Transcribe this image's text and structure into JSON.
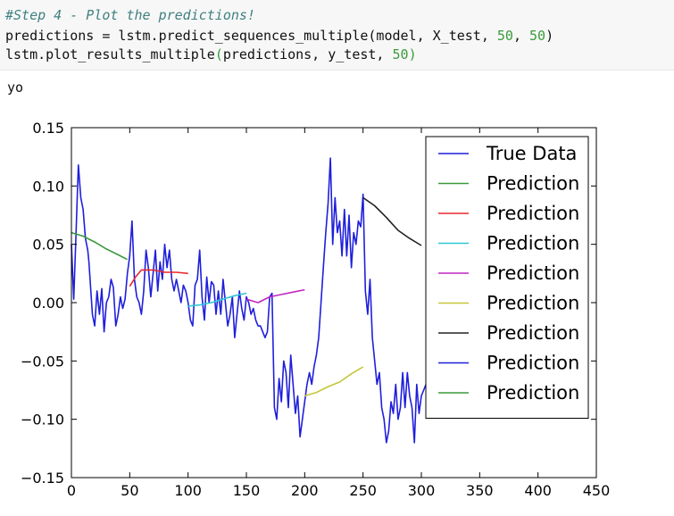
{
  "code": {
    "comment": "#Step 4 - Plot the predictions!",
    "line2": {
      "a": "predictions = lstm.predict_sequences_multiple(model, X_test, ",
      "n1": "50",
      "sep": ", ",
      "n2": "50",
      "close": ")"
    },
    "line3": {
      "a": "lstm.plot_results_multiple",
      "open": "(",
      "b": "predictions, y_test, ",
      "n": "50",
      "close": ")"
    }
  },
  "output_text": "yo",
  "chart_data": {
    "type": "line",
    "title": "",
    "xlabel": "",
    "ylabel": "",
    "xlim": [
      0,
      450
    ],
    "ylim": [
      -0.15,
      0.15
    ],
    "xticks": [
      0,
      50,
      100,
      150,
      200,
      250,
      300,
      350,
      400,
      450
    ],
    "yticks": [
      -0.15,
      -0.1,
      -0.05,
      0.0,
      0.05,
      0.1,
      0.15
    ],
    "ytick_labels": [
      "−0.15",
      "−0.10",
      "−0.05",
      "0.00",
      "0.05",
      "0.10",
      "0.15"
    ],
    "grid": false,
    "legend": "upper-right",
    "series": [
      {
        "name": "True Data",
        "color": "#1f1fdc",
        "x": [
          0,
          2,
          4,
          5,
          6,
          8,
          10,
          12,
          14,
          15,
          16,
          18,
          20,
          22,
          24,
          26,
          28,
          30,
          32,
          34,
          36,
          38,
          40,
          42,
          44,
          46,
          48,
          50,
          52,
          54,
          56,
          58,
          60,
          62,
          64,
          66,
          68,
          70,
          72,
          74,
          76,
          78,
          80,
          82,
          84,
          86,
          88,
          90,
          92,
          94,
          96,
          98,
          100,
          102,
          104,
          106,
          108,
          110,
          112,
          114,
          116,
          118,
          120,
          122,
          124,
          126,
          128,
          130,
          132,
          134,
          136,
          138,
          140,
          142,
          144,
          146,
          148,
          150,
          152,
          154,
          156,
          158,
          160,
          162,
          164,
          166,
          168,
          170,
          172,
          174,
          176,
          178,
          180,
          182,
          184,
          186,
          188,
          190,
          192,
          194,
          196,
          198,
          200,
          202,
          204,
          206,
          208,
          210,
          212,
          214,
          216,
          218,
          220,
          222,
          224,
          226,
          228,
          230,
          232,
          234,
          236,
          238,
          240,
          242,
          244,
          246,
          248,
          250,
          252,
          254,
          256,
          258,
          260,
          262,
          264,
          266,
          268,
          270,
          272,
          274,
          276,
          278,
          280,
          282,
          284,
          286,
          288,
          290,
          292,
          294,
          296,
          298,
          300,
          302,
          304
        ],
        "y": [
          0.05,
          0.003,
          0.06,
          0.09,
          0.118,
          0.09,
          0.08,
          0.055,
          0.045,
          0.035,
          0.02,
          -0.01,
          -0.02,
          0.01,
          -0.01,
          0.012,
          -0.025,
          0.0,
          0.005,
          0.02,
          0.013,
          -0.02,
          -0.01,
          0.005,
          -0.005,
          0.003,
          0.025,
          0.04,
          0.07,
          0.02,
          0.005,
          0.0,
          -0.01,
          0.01,
          0.045,
          0.03,
          0.005,
          0.025,
          0.045,
          0.01,
          0.035,
          0.02,
          0.05,
          0.03,
          0.045,
          0.02,
          0.01,
          0.02,
          0.01,
          0.0,
          0.015,
          0.01,
          0.0,
          -0.015,
          -0.02,
          0.015,
          0.02,
          0.045,
          0.005,
          -0.015,
          0.022,
          0.0,
          0.018,
          0.015,
          -0.01,
          0.01,
          -0.01,
          0.02,
          0.0,
          -0.02,
          -0.01,
          0.005,
          -0.03,
          -0.01,
          0.01,
          -0.005,
          -0.015,
          0.005,
          0.0,
          -0.01,
          -0.005,
          -0.015,
          -0.02,
          -0.02,
          -0.025,
          -0.03,
          -0.025,
          0.005,
          0.008,
          -0.09,
          -0.1,
          -0.065,
          -0.085,
          -0.05,
          -0.06,
          -0.09,
          -0.045,
          -0.07,
          -0.095,
          -0.08,
          -0.115,
          -0.1,
          -0.085,
          -0.07,
          -0.06,
          -0.07,
          -0.055,
          -0.045,
          -0.03,
          0.0,
          0.03,
          0.06,
          0.085,
          0.124,
          0.05,
          0.09,
          0.06,
          0.07,
          0.04,
          0.08,
          0.04,
          0.075,
          0.03,
          0.06,
          0.05,
          0.07,
          0.065,
          0.093,
          0.01,
          -0.01,
          0.02,
          -0.03,
          -0.05,
          -0.07,
          -0.06,
          -0.09,
          -0.1,
          -0.12,
          -0.11,
          -0.085,
          -0.095,
          -0.07,
          -0.1,
          -0.09,
          -0.06,
          -0.09,
          -0.06,
          -0.08,
          -0.09,
          -0.12,
          -0.07,
          -0.095,
          -0.08,
          -0.075,
          -0.07
        ]
      },
      {
        "name": "Prediction",
        "color": "#3a9a3a",
        "x": [
          0,
          10,
          20,
          30,
          40,
          48
        ],
        "y": [
          0.06,
          0.057,
          0.052,
          0.046,
          0.041,
          0.037
        ]
      },
      {
        "name": "Prediction",
        "color": "#e6282e",
        "x": [
          50,
          55,
          60,
          70,
          80,
          90,
          100
        ],
        "y": [
          0.014,
          0.022,
          0.028,
          0.028,
          0.026,
          0.026,
          0.025
        ]
      },
      {
        "name": "Prediction",
        "color": "#2ec8d2",
        "x": [
          100,
          110,
          120,
          130,
          140,
          150
        ],
        "y": [
          -0.003,
          -0.002,
          0.0,
          0.003,
          0.006,
          0.008
        ]
      },
      {
        "name": "Prediction",
        "color": "#c226c2",
        "x": [
          150,
          160,
          170,
          180,
          190,
          200
        ],
        "y": [
          0.003,
          0.0,
          0.005,
          0.007,
          0.009,
          0.011
        ]
      },
      {
        "name": "Prediction",
        "color": "#c6c63c",
        "x": [
          200,
          210,
          220,
          230,
          240,
          250
        ],
        "y": [
          -0.08,
          -0.077,
          -0.072,
          -0.068,
          -0.061,
          -0.055
        ]
      },
      {
        "name": "Prediction",
        "color": "#222222",
        "x": [
          250,
          260,
          270,
          280,
          290,
          300
        ],
        "y": [
          0.09,
          0.083,
          0.073,
          0.062,
          0.055,
          0.049
        ]
      },
      {
        "name": "Prediction",
        "color": "#1f1fdc",
        "x": [],
        "y": []
      },
      {
        "name": "Prediction",
        "color": "#3a9a3a",
        "x": [],
        "y": []
      }
    ]
  }
}
